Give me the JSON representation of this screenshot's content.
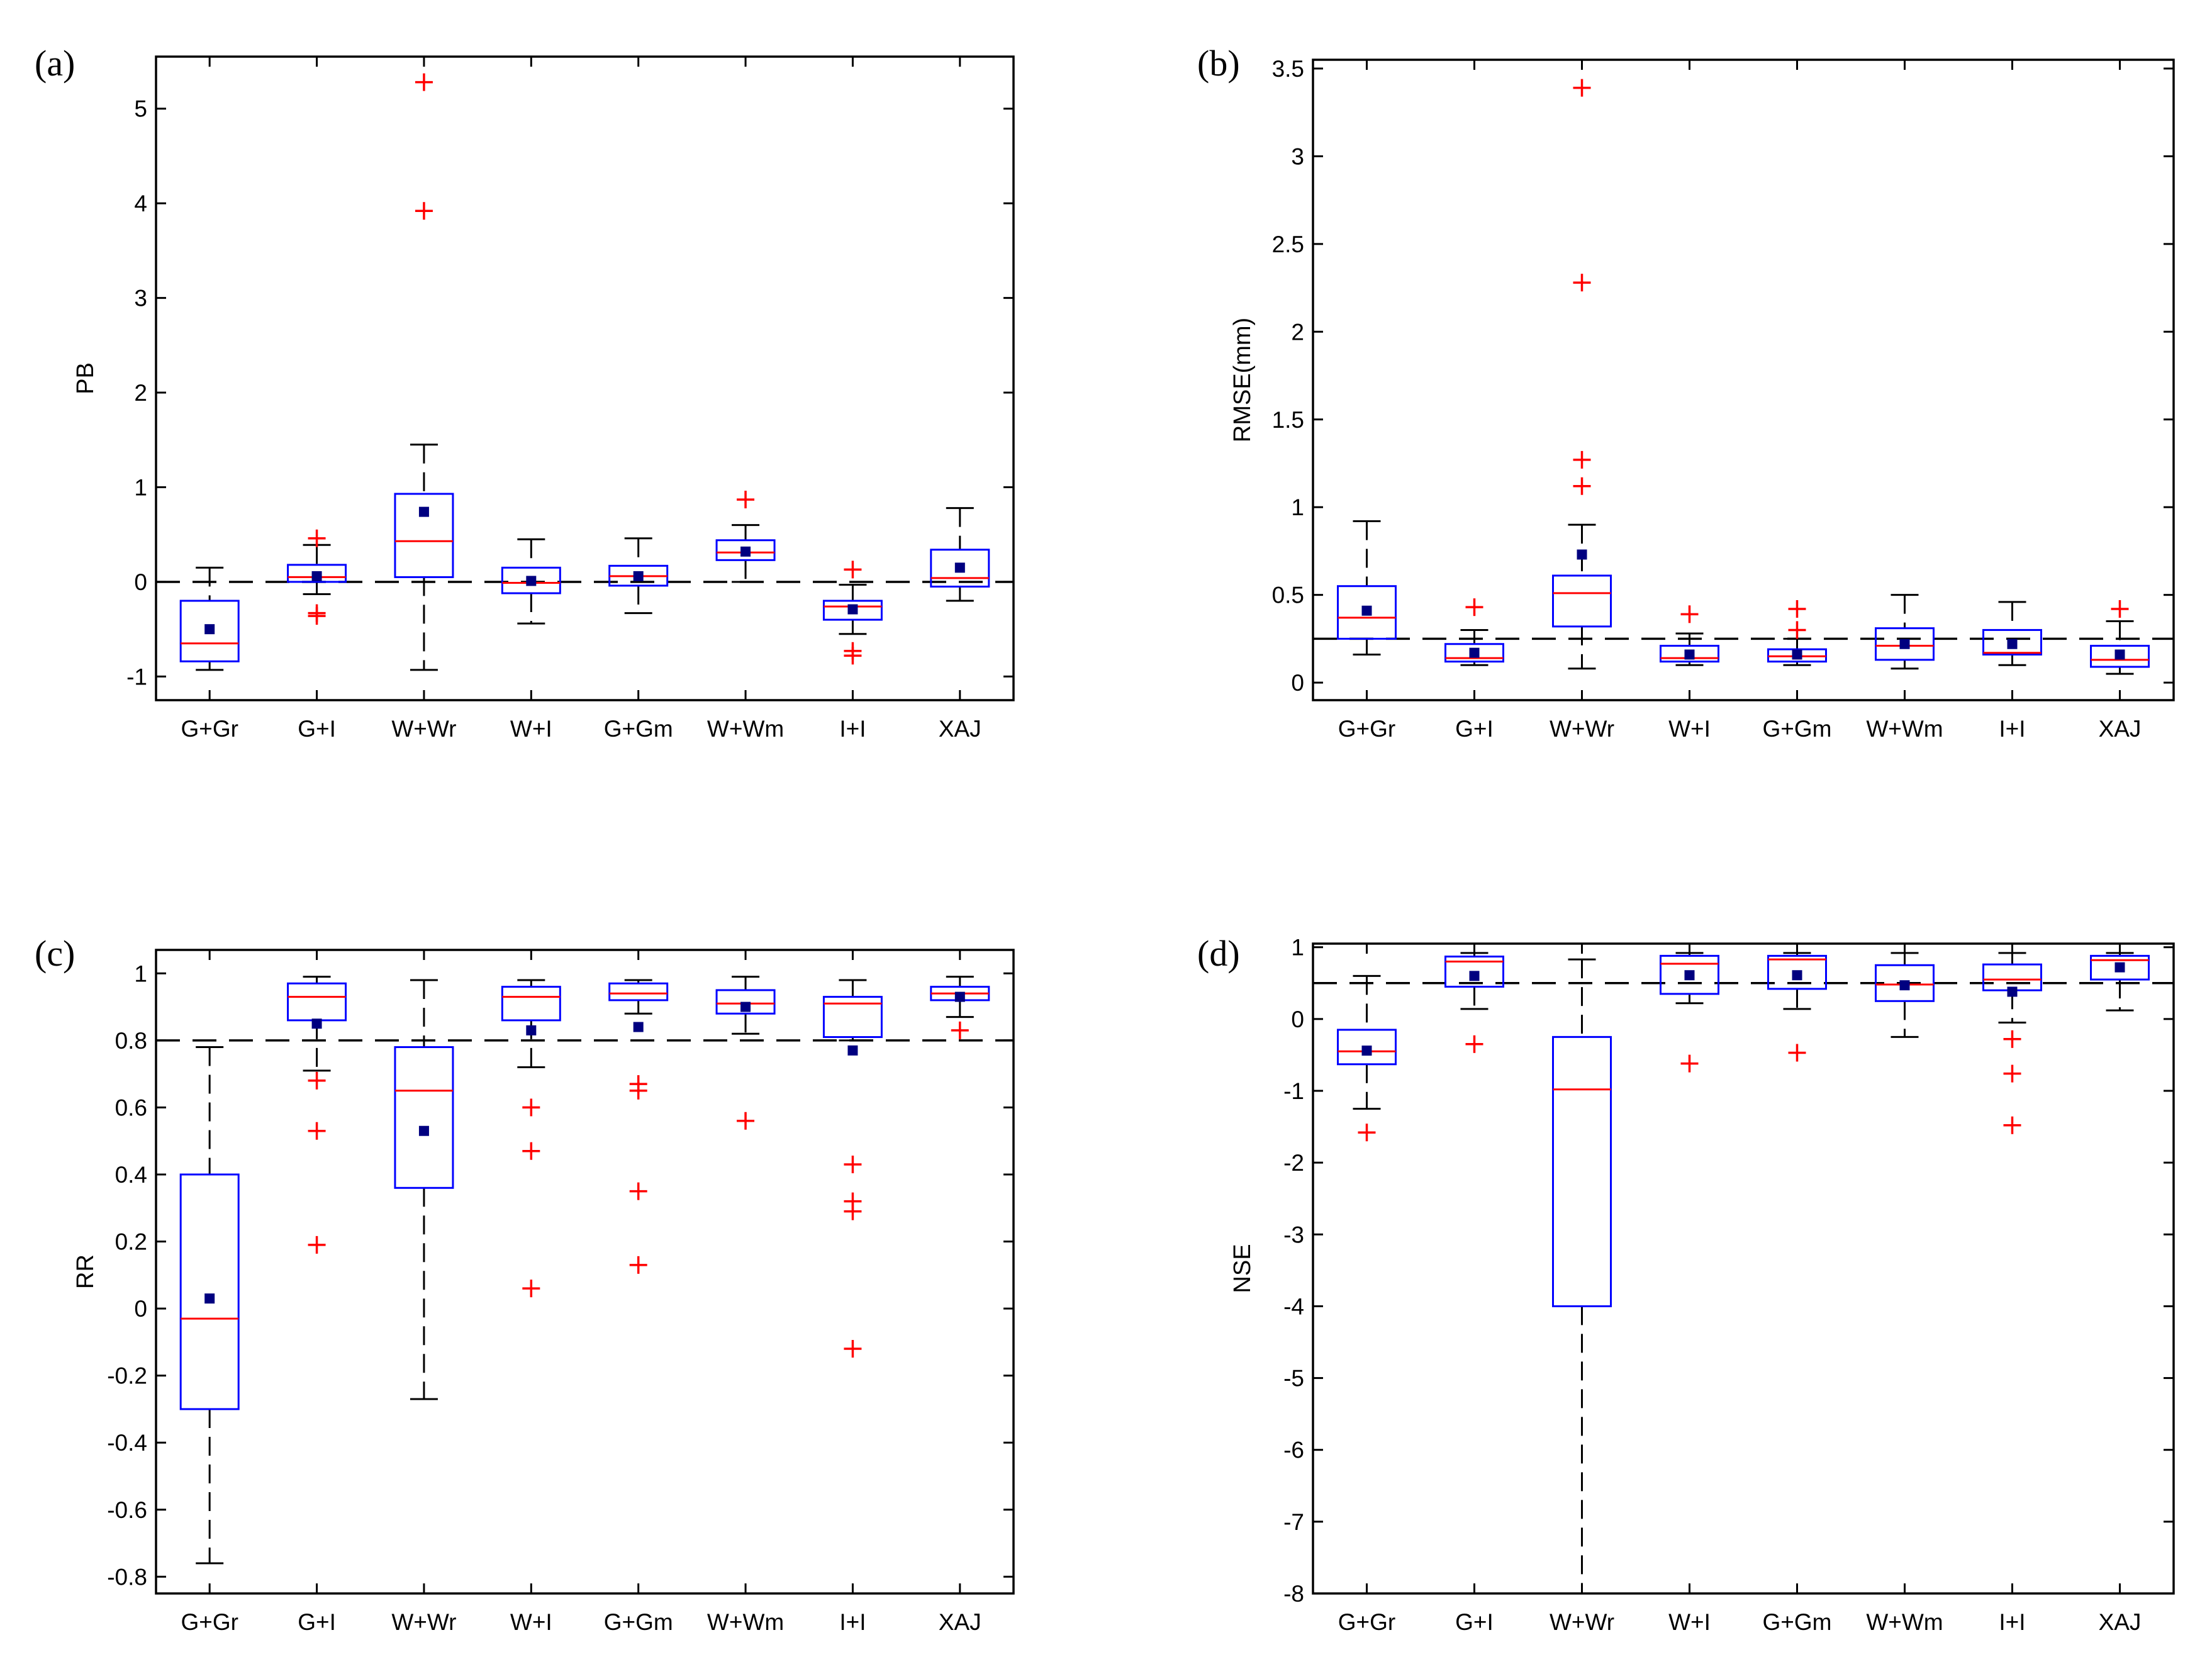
{
  "chart_data": [
    {
      "panel_label": "(a)",
      "type": "box",
      "ylabel": "PB",
      "categories": [
        "G+Gr",
        "G+I",
        "W+Wr",
        "W+I",
        "G+Gm",
        "W+Wm",
        "I+I",
        "XAJ"
      ],
      "ylim": [
        -1.25,
        5.55
      ],
      "yticks": [
        -1,
        0,
        1,
        2,
        3,
        4,
        5
      ],
      "ytick_labels": [
        "-1",
        "0",
        "1",
        "2",
        "3",
        "4",
        "5"
      ],
      "reference_line": 0,
      "boxes": [
        {
          "whisker_low": -0.93,
          "q1": -0.84,
          "median": -0.65,
          "q3": -0.2,
          "whisker_high": 0.15,
          "mean": -0.5,
          "outliers": []
        },
        {
          "whisker_low": -0.13,
          "q1": 0.0,
          "median": 0.05,
          "q3": 0.18,
          "whisker_high": 0.39,
          "mean": 0.06,
          "outliers": [
            0.46,
            -0.33,
            -0.36
          ]
        },
        {
          "whisker_low": -0.93,
          "q1": 0.05,
          "median": 0.43,
          "q3": 0.93,
          "whisker_high": 1.45,
          "mean": 0.74,
          "outliers": [
            3.92,
            5.28
          ]
        },
        {
          "whisker_low": -0.44,
          "q1": -0.12,
          "median": -0.01,
          "q3": 0.15,
          "whisker_high": 0.45,
          "mean": 0.01,
          "outliers": []
        },
        {
          "whisker_low": -0.33,
          "q1": -0.04,
          "median": 0.06,
          "q3": 0.17,
          "whisker_high": 0.46,
          "mean": 0.06,
          "outliers": []
        },
        {
          "whisker_low": 0.0,
          "q1": 0.23,
          "median": 0.31,
          "q3": 0.44,
          "whisker_high": 0.6,
          "mean": 0.32,
          "outliers": [
            0.87
          ]
        },
        {
          "whisker_low": -0.55,
          "q1": -0.4,
          "median": -0.26,
          "q3": -0.2,
          "whisker_high": -0.03,
          "mean": -0.29,
          "outliers": [
            0.13,
            -0.73,
            -0.78
          ]
        },
        {
          "whisker_low": -0.2,
          "q1": -0.05,
          "median": 0.04,
          "q3": 0.34,
          "whisker_high": 0.78,
          "mean": 0.15,
          "outliers": []
        }
      ]
    },
    {
      "panel_label": "(b)",
      "type": "box",
      "ylabel": "RMSE(mm)",
      "categories": [
        "G+Gr",
        "G+I",
        "W+Wr",
        "W+I",
        "G+Gm",
        "W+Wm",
        "I+I",
        "XAJ"
      ],
      "ylim": [
        -0.1,
        3.55
      ],
      "yticks": [
        0,
        0.5,
        1,
        1.5,
        2,
        2.5,
        3,
        3.5
      ],
      "ytick_labels": [
        "0",
        "0.5",
        "1",
        "1.5",
        "2",
        "2.5",
        "3",
        "3.5"
      ],
      "reference_line": 0.25,
      "boxes": [
        {
          "whisker_low": 0.16,
          "q1": 0.25,
          "median": 0.37,
          "q3": 0.55,
          "whisker_high": 0.92,
          "mean": 0.41,
          "outliers": []
        },
        {
          "whisker_low": 0.1,
          "q1": 0.12,
          "median": 0.14,
          "q3": 0.22,
          "whisker_high": 0.3,
          "mean": 0.17,
          "outliers": [
            0.43
          ]
        },
        {
          "whisker_low": 0.08,
          "q1": 0.32,
          "median": 0.51,
          "q3": 0.61,
          "whisker_high": 0.9,
          "mean": 0.73,
          "outliers": [
            1.12,
            1.27,
            2.28,
            3.39
          ]
        },
        {
          "whisker_low": 0.1,
          "q1": 0.12,
          "median": 0.14,
          "q3": 0.21,
          "whisker_high": 0.28,
          "mean": 0.16,
          "outliers": [
            0.39
          ]
        },
        {
          "whisker_low": 0.1,
          "q1": 0.12,
          "median": 0.15,
          "q3": 0.19,
          "whisker_high": 0.25,
          "mean": 0.16,
          "outliers": [
            0.3,
            0.42
          ]
        },
        {
          "whisker_low": 0.08,
          "q1": 0.13,
          "median": 0.21,
          "q3": 0.31,
          "whisker_high": 0.5,
          "mean": 0.22,
          "outliers": []
        },
        {
          "whisker_low": 0.1,
          "q1": 0.16,
          "median": 0.17,
          "q3": 0.3,
          "whisker_high": 0.46,
          "mean": 0.22,
          "outliers": []
        },
        {
          "whisker_low": 0.05,
          "q1": 0.09,
          "median": 0.13,
          "q3": 0.21,
          "whisker_high": 0.35,
          "mean": 0.16,
          "outliers": [
            0.42
          ]
        }
      ]
    },
    {
      "panel_label": "(c)",
      "type": "box",
      "ylabel": "RR",
      "categories": [
        "G+Gr",
        "G+I",
        "W+Wr",
        "W+I",
        "G+Gm",
        "W+Wm",
        "I+I",
        "XAJ"
      ],
      "ylim": [
        -0.85,
        1.07
      ],
      "yticks": [
        -0.8,
        -0.6,
        -0.4,
        -0.2,
        0,
        0.2,
        0.4,
        0.6,
        0.8,
        1
      ],
      "ytick_labels": [
        "-0.8",
        "-0.6",
        "-0.4",
        "-0.2",
        "0",
        "0.2",
        "0.4",
        "0.6",
        "0.8",
        "1"
      ],
      "reference_line": 0.8,
      "boxes": [
        {
          "whisker_low": -0.76,
          "q1": -0.3,
          "median": -0.03,
          "q3": 0.4,
          "whisker_high": 0.78,
          "mean": 0.03,
          "outliers": []
        },
        {
          "whisker_low": 0.71,
          "q1": 0.86,
          "median": 0.93,
          "q3": 0.97,
          "whisker_high": 0.99,
          "mean": 0.85,
          "outliers": [
            0.68,
            0.53,
            0.19
          ]
        },
        {
          "whisker_low": -0.27,
          "q1": 0.36,
          "median": 0.65,
          "q3": 0.78,
          "whisker_high": 0.98,
          "mean": 0.53,
          "outliers": []
        },
        {
          "whisker_low": 0.72,
          "q1": 0.86,
          "median": 0.93,
          "q3": 0.96,
          "whisker_high": 0.98,
          "mean": 0.83,
          "outliers": [
            0.6,
            0.47,
            0.06
          ]
        },
        {
          "whisker_low": 0.88,
          "q1": 0.92,
          "median": 0.94,
          "q3": 0.97,
          "whisker_high": 0.98,
          "mean": 0.84,
          "outliers": [
            0.67,
            0.65,
            0.35,
            0.13
          ]
        },
        {
          "whisker_low": 0.82,
          "q1": 0.88,
          "median": 0.91,
          "q3": 0.95,
          "whisker_high": 0.99,
          "mean": 0.9,
          "outliers": [
            0.56
          ]
        },
        {
          "whisker_low": 0.8,
          "q1": 0.81,
          "median": 0.91,
          "q3": 0.93,
          "whisker_high": 0.98,
          "mean": 0.77,
          "outliers": [
            0.43,
            0.32,
            0.29,
            -0.12
          ]
        },
        {
          "whisker_low": 0.87,
          "q1": 0.92,
          "median": 0.94,
          "q3": 0.96,
          "whisker_high": 0.99,
          "mean": 0.93,
          "outliers": [
            0.83
          ]
        }
      ]
    },
    {
      "panel_label": "(d)",
      "type": "box",
      "ylabel": "NSE",
      "categories": [
        "G+Gr",
        "G+I",
        "W+Wr",
        "W+I",
        "G+Gm",
        "W+Wm",
        "I+I",
        "XAJ"
      ],
      "ylim": [
        -8.0,
        1.05
      ],
      "yticks": [
        -8,
        -7,
        -6,
        -5,
        -4,
        -3,
        -2,
        -1,
        0,
        1
      ],
      "ytick_labels": [
        "-8",
        "-7",
        "-6",
        "-5",
        "-4",
        "-3",
        "-2",
        "-1",
        "0",
        "1"
      ],
      "reference_line": 0.5,
      "boxes": [
        {
          "whisker_low": -1.25,
          "q1": -0.63,
          "median": -0.45,
          "q3": -0.15,
          "whisker_high": 0.6,
          "mean": -0.44,
          "outliers": [
            -1.58
          ]
        },
        {
          "whisker_low": 0.14,
          "q1": 0.45,
          "median": 0.8,
          "q3": 0.87,
          "whisker_high": 0.92,
          "mean": 0.6,
          "outliers": [
            -0.35
          ]
        },
        {
          "whisker_low": -8.0,
          "q1": -4.0,
          "median": -0.98,
          "q3": -0.25,
          "whisker_high": 0.83,
          "mean": null,
          "outliers": []
        },
        {
          "whisker_low": 0.22,
          "q1": 0.35,
          "median": 0.77,
          "q3": 0.88,
          "whisker_high": 0.92,
          "mean": 0.61,
          "outliers": [
            -0.62
          ]
        },
        {
          "whisker_low": 0.14,
          "q1": 0.42,
          "median": 0.83,
          "q3": 0.88,
          "whisker_high": 0.92,
          "mean": 0.61,
          "outliers": [
            -0.47
          ]
        },
        {
          "whisker_low": -0.25,
          "q1": 0.25,
          "median": 0.48,
          "q3": 0.75,
          "whisker_high": 0.92,
          "mean": 0.47,
          "outliers": []
        },
        {
          "whisker_low": -0.05,
          "q1": 0.4,
          "median": 0.55,
          "q3": 0.76,
          "whisker_high": 0.92,
          "mean": 0.38,
          "outliers": [
            -0.28,
            -0.76,
            -1.48
          ]
        },
        {
          "whisker_low": 0.12,
          "q1": 0.55,
          "median": 0.82,
          "q3": 0.88,
          "whisker_high": 0.92,
          "mean": 0.72,
          "outliers": []
        }
      ]
    }
  ],
  "colors": {
    "box": "#0000ff",
    "median": "#ff0000",
    "outlier": "#ff0000",
    "mean_marker": "#000080",
    "axes": "#000000",
    "whisker": "#000000"
  }
}
